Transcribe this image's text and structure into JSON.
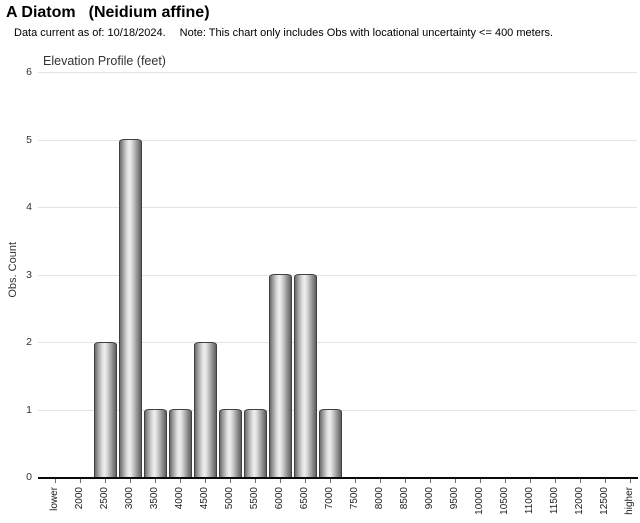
{
  "header": {
    "title_common": "A Diatom",
    "title_scientific": "(Neidium affine)",
    "subtitle_date": "Data current as of: 10/18/2024.",
    "subtitle_note": "Note: This chart only includes Obs with locational uncertainty <= 400 meters."
  },
  "chart_data": {
    "type": "bar",
    "title": "Elevation Profile (feet)",
    "xlabel": "",
    "ylabel": "Obs. Count",
    "ylim": [
      0,
      6
    ],
    "yticks": [
      0,
      1,
      2,
      3,
      4,
      5,
      6
    ],
    "grid": true,
    "legend": "none",
    "categories": [
      "lower",
      "2000",
      "2500",
      "3000",
      "3500",
      "4000",
      "4500",
      "5000",
      "5500",
      "6000",
      "6500",
      "7000",
      "7500",
      "8000",
      "8500",
      "9000",
      "9500",
      "10000",
      "10500",
      "11000",
      "11500",
      "12000",
      "12500",
      "higher"
    ],
    "values": [
      0,
      0,
      2,
      5,
      1,
      1,
      2,
      1,
      1,
      3,
      3,
      1,
      0,
      0,
      0,
      0,
      0,
      0,
      0,
      0,
      0,
      0,
      0,
      0
    ]
  },
  "colors": {
    "bar_edge": "#404040",
    "bar_highlight": "#efefef",
    "bar_shadow": "#606060",
    "gridline": "#e4e4e4",
    "axis": "#0a0a0a",
    "title_text": "#000000",
    "label_text": "#333333"
  }
}
